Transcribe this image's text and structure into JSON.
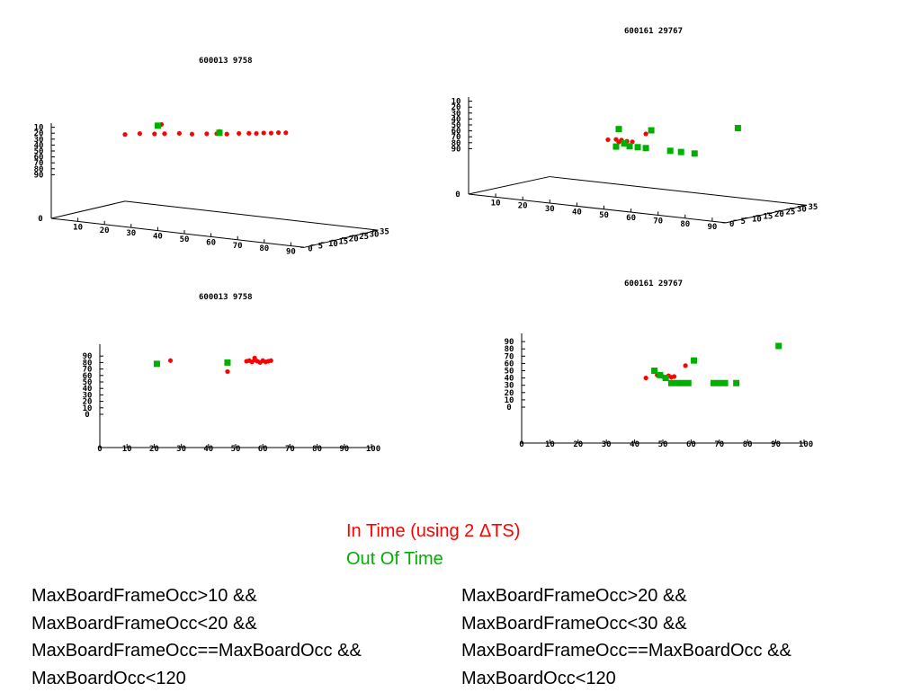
{
  "legend": {
    "in_time": "In Time (using 2 ΔTS)",
    "out_of_time": "Out Of Time",
    "in_time_color": "#ff0000",
    "out_of_time_color": "#00b000"
  },
  "cuts": {
    "left": [
      "MaxBoardFrameOcc>10 &&",
      "MaxBoardFrameOcc<20 &&",
      "MaxBoardFrameOcc==MaxBoardOcc &&",
      "MaxBoardOcc<120"
    ],
    "right": [
      "MaxBoardFrameOcc>20 &&",
      "MaxBoardFrameOcc<30 &&",
      "MaxBoardFrameOcc==MaxBoardOcc &&",
      "MaxBoardOcc<120"
    ]
  },
  "chart_data": [
    {
      "type": "scatter",
      "projection": "3d",
      "title": "600013 9758",
      "x_ticks": [
        "10",
        "20",
        "30",
        "40",
        "50",
        "60",
        "70",
        "80",
        "90"
      ],
      "y_ticks": [
        "0",
        "5",
        "10",
        "15",
        "20",
        "25",
        "30",
        "35"
      ],
      "z_ticks": [
        "0",
        "10",
        "20",
        "30",
        "40",
        "50",
        "60",
        "70",
        "80",
        "90"
      ],
      "series": [
        {
          "color": "#ff0000",
          "marker": "star",
          "points": [
            [
              20,
              10,
              80
            ],
            [
              24,
              12,
              82
            ],
            [
              28,
              14,
              82
            ],
            [
              31,
              15,
              83
            ],
            [
              35,
              17,
              84
            ],
            [
              39,
              18,
              84
            ],
            [
              43,
              20,
              85
            ],
            [
              46,
              21,
              86
            ],
            [
              49,
              22,
              86
            ],
            [
              52,
              24,
              87
            ],
            [
              55,
              25,
              88
            ],
            [
              57,
              26,
              88
            ],
            [
              59,
              27,
              89
            ],
            [
              61,
              28,
              89
            ],
            [
              63,
              29,
              90
            ],
            [
              65,
              30,
              90
            ],
            [
              47,
              21,
              90
            ],
            [
              26,
              20,
              92
            ]
          ]
        },
        {
          "color": "#00b000",
          "marker": "square",
          "points": [
            [
              20,
              26,
              82
            ],
            [
              47,
              21,
              88
            ]
          ]
        }
      ]
    },
    {
      "type": "scatter",
      "projection": "3d",
      "title": "600161 29767",
      "x_ticks": [
        "10",
        "20",
        "30",
        "40",
        "50",
        "60",
        "70",
        "80",
        "90"
      ],
      "y_ticks": [
        "0",
        "5",
        "10",
        "15",
        "20",
        "25",
        "30",
        "35"
      ],
      "z_ticks": [
        "0",
        "10",
        "20",
        "30",
        "40",
        "50",
        "60",
        "70",
        "80",
        "90"
      ],
      "series": [
        {
          "color": "#ff0000",
          "marker": "star",
          "points": [
            [
              44,
              9,
              40
            ],
            [
              47,
              9,
              42
            ],
            [
              49,
              9,
              42
            ],
            [
              51,
              9,
              41
            ],
            [
              53,
              9,
              41
            ],
            [
              58,
              9,
              57
            ],
            [
              48,
              9,
              38
            ]
          ]
        },
        {
          "color": "#00b000",
          "marker": "square",
          "points": [
            [
              47,
              9,
              30
            ],
            [
              48,
              9,
              60
            ],
            [
              50,
              9,
              37
            ],
            [
              52,
              9,
              33
            ],
            [
              55,
              9,
              33
            ],
            [
              58,
              9,
              33
            ],
            [
              60,
              9,
              64
            ],
            [
              67,
              9,
              33
            ],
            [
              71,
              9,
              33
            ],
            [
              76,
              9,
              33
            ],
            [
              92,
              9,
              84
            ]
          ]
        }
      ]
    },
    {
      "type": "scatter",
      "title": "600013 9758",
      "x_ticks": [
        "0",
        "10",
        "20",
        "30",
        "40",
        "50",
        "60",
        "70",
        "80",
        "90",
        "100"
      ],
      "y_ticks": [
        "0",
        "10",
        "20",
        "30",
        "40",
        "50",
        "60",
        "70",
        "80",
        "90"
      ],
      "xlim": [
        0,
        100
      ],
      "ylim": [
        -50,
        95
      ],
      "series": [
        {
          "color": "#ff0000",
          "marker": "star",
          "x": [
            26,
            47,
            54,
            55,
            56,
            57,
            58,
            59,
            60,
            61,
            62,
            63,
            57
          ],
          "y": [
            83,
            66,
            82,
            83,
            81,
            84,
            82,
            80,
            83,
            81,
            82,
            83,
            87
          ]
        },
        {
          "color": "#00b000",
          "marker": "square",
          "x": [
            21,
            47
          ],
          "y": [
            78,
            80
          ]
        }
      ]
    },
    {
      "type": "scatter",
      "title": "600161 29767",
      "x_ticks": [
        "0",
        "10",
        "20",
        "30",
        "40",
        "50",
        "60",
        "70",
        "80",
        "90",
        "100"
      ],
      "y_ticks": [
        "0",
        "10",
        "20",
        "30",
        "40",
        "50",
        "60",
        "70",
        "80",
        "90"
      ],
      "xlim": [
        0,
        100
      ],
      "ylim": [
        -50,
        95
      ],
      "series": [
        {
          "color": "#ff0000",
          "marker": "star",
          "x": [
            44,
            48,
            49,
            50,
            51,
            52,
            53,
            58,
            54
          ],
          "y": [
            40,
            44,
            43,
            42,
            41,
            43,
            41,
            57,
            42
          ]
        },
        {
          "color": "#00b000",
          "marker": "square",
          "x": [
            47,
            49,
            51,
            53,
            55,
            57,
            59,
            61,
            68,
            70,
            72,
            76,
            91
          ],
          "y": [
            50,
            44,
            40,
            33,
            33,
            33,
            33,
            64,
            33,
            33,
            33,
            33,
            84
          ]
        }
      ]
    }
  ]
}
